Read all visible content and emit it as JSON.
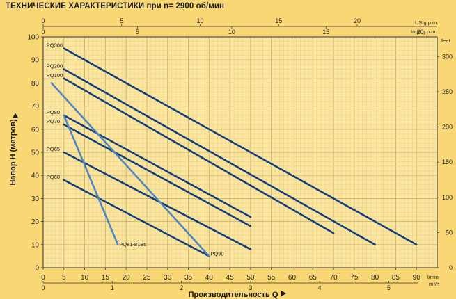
{
  "header": {
    "title": "ТЕХНИЧЕСКИЕ ХАРАКТЕРИСТИКИ при n= 2900 об/мин"
  },
  "colors": {
    "background": "#f9d774",
    "plot_background": "#fbe6a0",
    "grid_minor": "#eccf87",
    "grid_major": "#cfb06a",
    "series_dark": "#123f7c",
    "series_light": "#4d86c0"
  },
  "chart_data": {
    "type": "line",
    "title": "ТЕХНИЧЕСКИЕ ХАРАКТЕРИСТИКИ при n= 2900 об/мин",
    "xlabel": "Производительность Q",
    "ylabel": "Напор H   (метров)",
    "x_unit": "l/min",
    "xlim": [
      0,
      95
    ],
    "ylim": [
      0,
      100
    ],
    "x_ticks": [
      0,
      5,
      10,
      15,
      20,
      25,
      30,
      35,
      40,
      45,
      50,
      55,
      60,
      65,
      70,
      75,
      80,
      85,
      90
    ],
    "y_ticks": [
      0,
      10,
      20,
      30,
      40,
      50,
      60,
      70,
      80,
      90,
      100
    ],
    "grid": true,
    "secondary_axes": {
      "top_us": {
        "label": "US g.p.m.",
        "ticks": [
          0,
          5,
          10,
          15,
          20
        ]
      },
      "top_imp": {
        "label": "Imp. g.p.m.",
        "ticks": [
          0,
          5,
          10,
          15,
          20
        ]
      },
      "bottom_m3h": {
        "label": "m³/h",
        "ticks": [
          0,
          1,
          2,
          3,
          4,
          5
        ]
      },
      "right_feet": {
        "label": "feet",
        "ticks": [
          0,
          50,
          100,
          150,
          200,
          250,
          300
        ]
      }
    },
    "series": [
      {
        "name": "PQ300",
        "tone": "dark",
        "x": [
          5,
          90
        ],
        "y": [
          95,
          10
        ]
      },
      {
        "name": "PQ200",
        "tone": "dark",
        "x": [
          5,
          80
        ],
        "y": [
          86,
          10
        ]
      },
      {
        "name": "PQ100",
        "tone": "dark",
        "x": [
          5,
          70
        ],
        "y": [
          82,
          15
        ]
      },
      {
        "name": "PQ80",
        "tone": "dark",
        "x": [
          5,
          50
        ],
        "y": [
          66,
          22
        ]
      },
      {
        "name": "PQ70",
        "tone": "dark",
        "x": [
          5,
          50
        ],
        "y": [
          62,
          18
        ]
      },
      {
        "name": "PQ65",
        "tone": "dark",
        "x": [
          5,
          50
        ],
        "y": [
          50,
          8
        ]
      },
      {
        "name": "PQ60",
        "tone": "dark",
        "x": [
          5,
          40
        ],
        "y": [
          38,
          5
        ]
      },
      {
        "name": "PQ81-81Bs",
        "tone": "light",
        "x": [
          5,
          18
        ],
        "y": [
          66,
          10
        ]
      },
      {
        "name": "PQ90",
        "tone": "light",
        "x": [
          2,
          40
        ],
        "y": [
          80,
          5
        ]
      }
    ]
  }
}
